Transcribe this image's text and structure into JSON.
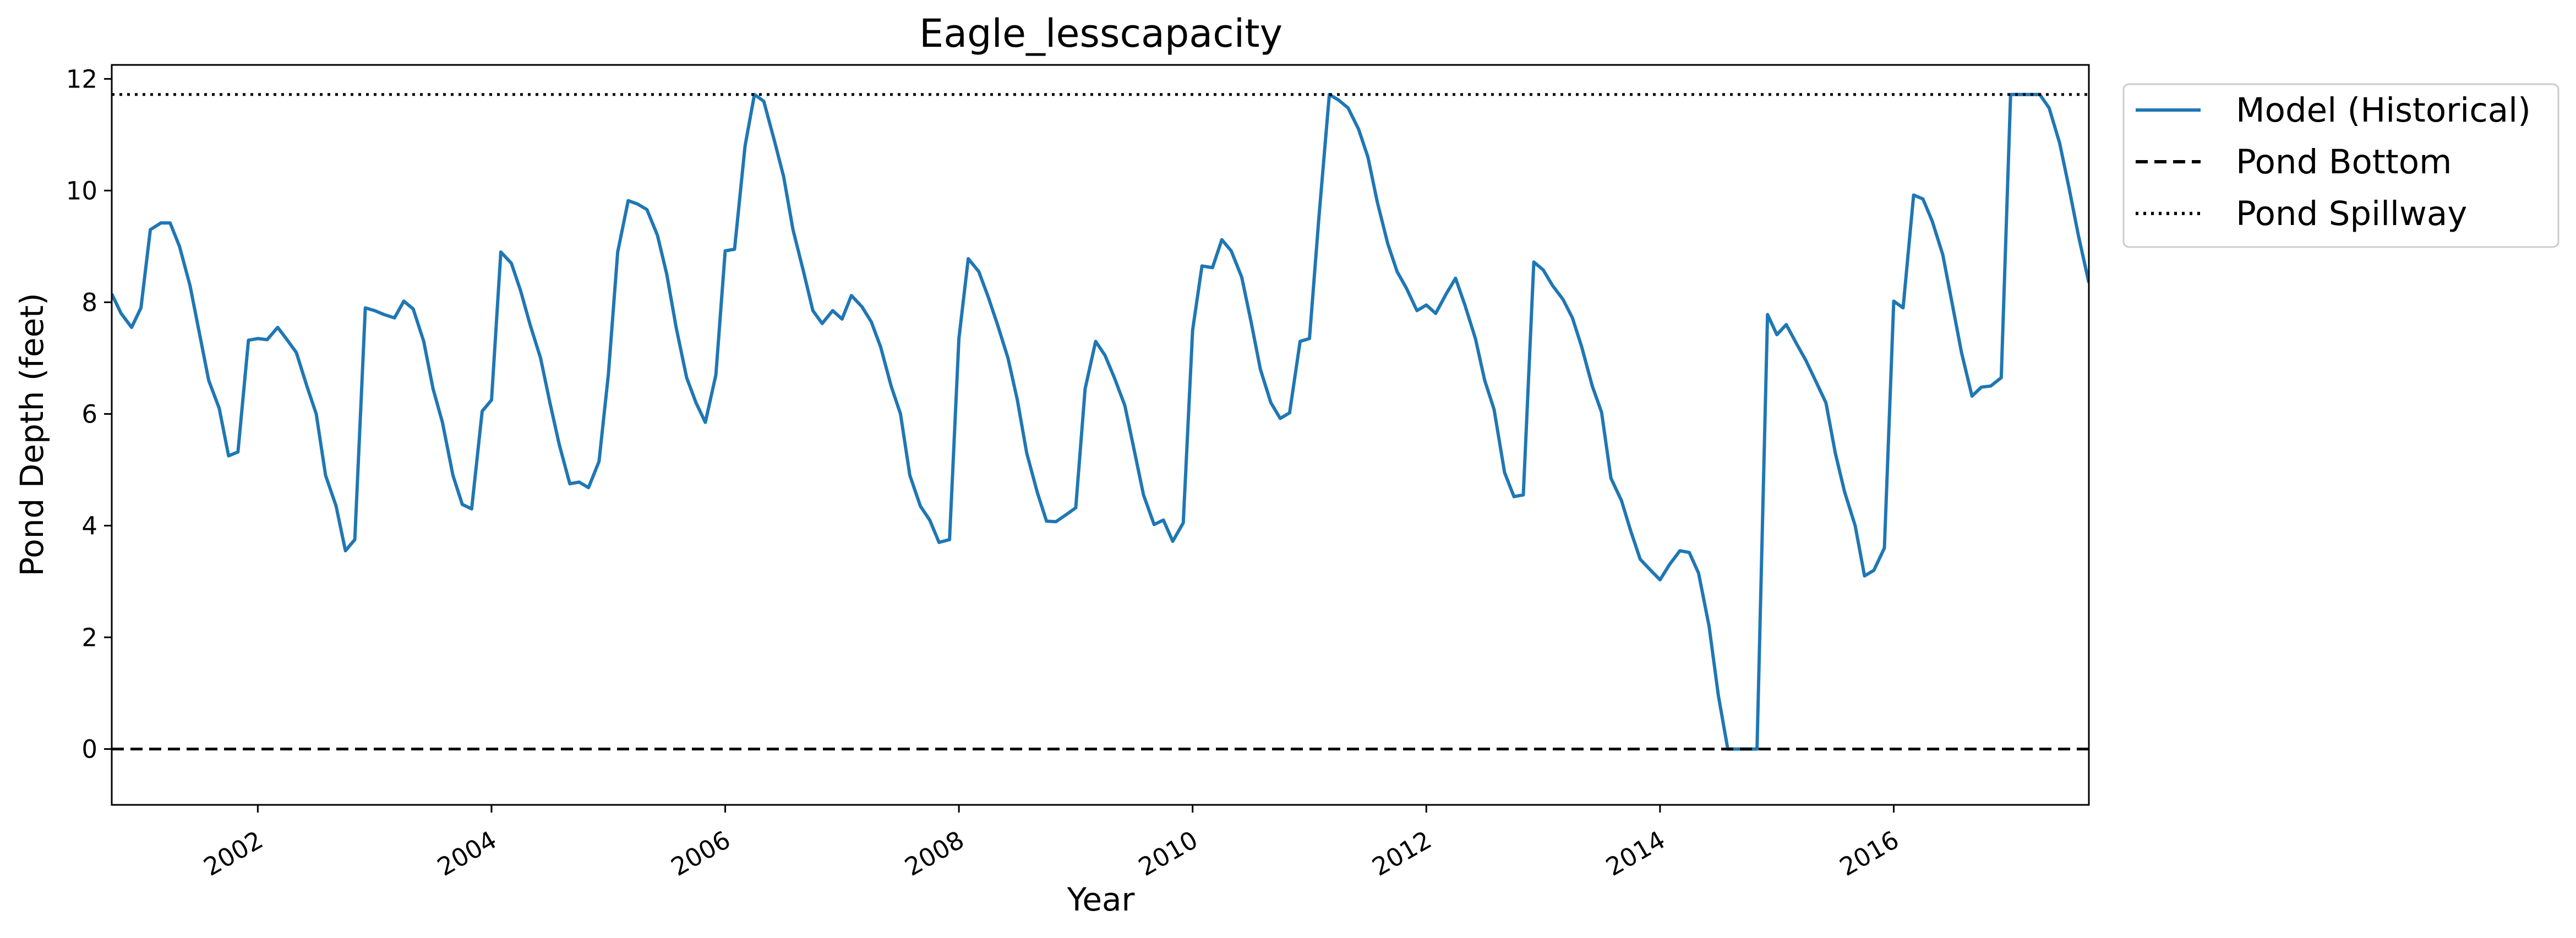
{
  "chart_data": {
    "type": "line",
    "title": "Eagle_lesscapacity",
    "xlabel": "Year",
    "ylabel": "Pond Depth (feet)",
    "xlim": [
      2000.75,
      2017.67
    ],
    "ylim": [
      -1,
      12.25
    ],
    "x_ticks": [
      2002,
      2004,
      2006,
      2008,
      2010,
      2012,
      2014,
      2016
    ],
    "x_tick_labels": [
      "2002",
      "2004",
      "2006",
      "2008",
      "2010",
      "2012",
      "2014",
      "2016"
    ],
    "y_ticks": [
      0,
      2,
      4,
      6,
      8,
      10,
      12
    ],
    "y_tick_labels": [
      "0",
      "2",
      "4",
      "6",
      "8",
      "10",
      "12"
    ],
    "grid": false,
    "legend_position": "outside-upper-right",
    "series": [
      {
        "name": "Model (Historical)",
        "color": "#1f77b4",
        "style": "solid",
        "x": [
          2000.75,
          2000.83,
          2000.92,
          2001.0,
          2001.08,
          2001.17,
          2001.25,
          2001.33,
          2001.42,
          2001.5,
          2001.58,
          2001.67,
          2001.75,
          2001.83,
          2001.92,
          2002.0,
          2002.08,
          2002.17,
          2002.25,
          2002.33,
          2002.42,
          2002.5,
          2002.58,
          2002.67,
          2002.75,
          2002.83,
          2002.92,
          2003.0,
          2003.08,
          2003.17,
          2003.25,
          2003.33,
          2003.42,
          2003.5,
          2003.58,
          2003.67,
          2003.75,
          2003.83,
          2003.92,
          2004.0,
          2004.08,
          2004.17,
          2004.25,
          2004.33,
          2004.42,
          2004.5,
          2004.58,
          2004.67,
          2004.75,
          2004.83,
          2004.92,
          2005.0,
          2005.08,
          2005.17,
          2005.25,
          2005.33,
          2005.42,
          2005.5,
          2005.58,
          2005.67,
          2005.75,
          2005.83,
          2005.92,
          2006.0,
          2006.08,
          2006.17,
          2006.25,
          2006.33,
          2006.42,
          2006.5,
          2006.58,
          2006.67,
          2006.75,
          2006.83,
          2006.92,
          2007.0,
          2007.08,
          2007.17,
          2007.25,
          2007.33,
          2007.42,
          2007.5,
          2007.58,
          2007.67,
          2007.75,
          2007.83,
          2007.92,
          2008.0,
          2008.08,
          2008.17,
          2008.25,
          2008.33,
          2008.42,
          2008.5,
          2008.58,
          2008.67,
          2008.75,
          2008.83,
          2008.92,
          2009.0,
          2009.08,
          2009.17,
          2009.25,
          2009.33,
          2009.42,
          2009.5,
          2009.58,
          2009.67,
          2009.75,
          2009.83,
          2009.92,
          2010.0,
          2010.08,
          2010.17,
          2010.25,
          2010.33,
          2010.42,
          2010.5,
          2010.58,
          2010.67,
          2010.75,
          2010.83,
          2010.92,
          2011.0,
          2011.08,
          2011.17,
          2011.25,
          2011.33,
          2011.42,
          2011.5,
          2011.58,
          2011.67,
          2011.75,
          2011.83,
          2011.92,
          2012.0,
          2012.08,
          2012.17,
          2012.25,
          2012.33,
          2012.42,
          2012.5,
          2012.58,
          2012.67,
          2012.75,
          2012.83,
          2012.92,
          2013.0,
          2013.08,
          2013.17,
          2013.25,
          2013.33,
          2013.42,
          2013.5,
          2013.58,
          2013.67,
          2013.75,
          2013.83,
          2013.92,
          2014.0,
          2014.08,
          2014.17,
          2014.25,
          2014.33,
          2014.42,
          2014.5,
          2014.58,
          2014.67,
          2014.75,
          2014.83,
          2014.92,
          2015.0,
          2015.08,
          2015.17,
          2015.25,
          2015.33,
          2015.42,
          2015.5,
          2015.58,
          2015.67,
          2015.75,
          2015.83,
          2015.92,
          2016.0,
          2016.08,
          2016.17,
          2016.25,
          2016.33,
          2016.42,
          2016.5,
          2016.58,
          2016.67,
          2016.75,
          2016.83,
          2016.92,
          2017.0,
          2017.08,
          2017.17,
          2017.25,
          2017.33,
          2017.42,
          2017.5,
          2017.58,
          2017.67
        ],
        "y": [
          8.15,
          7.8,
          7.55,
          7.9,
          9.3,
          9.42,
          9.42,
          9.0,
          8.3,
          7.45,
          6.6,
          6.1,
          5.25,
          5.32,
          7.32,
          7.35,
          7.33,
          7.55,
          7.33,
          7.1,
          6.5,
          6.0,
          4.9,
          4.35,
          3.55,
          3.75,
          7.9,
          7.85,
          7.78,
          7.72,
          8.02,
          7.88,
          7.3,
          6.45,
          5.85,
          4.9,
          4.38,
          4.3,
          6.05,
          6.25,
          8.9,
          8.7,
          8.2,
          7.6,
          7.0,
          6.2,
          5.45,
          4.75,
          4.78,
          4.68,
          5.15,
          6.7,
          8.9,
          9.82,
          9.76,
          9.66,
          9.2,
          8.5,
          7.55,
          6.65,
          6.2,
          5.85,
          6.7,
          8.92,
          8.95,
          10.8,
          11.72,
          11.6,
          10.9,
          10.25,
          9.3,
          8.55,
          7.85,
          7.62,
          7.85,
          7.7,
          8.12,
          7.92,
          7.65,
          7.2,
          6.5,
          6.0,
          4.9,
          4.35,
          4.1,
          3.7,
          3.75,
          7.35,
          8.78,
          8.55,
          8.1,
          7.6,
          7.0,
          6.25,
          5.3,
          4.6,
          4.08,
          4.07,
          4.2,
          4.32,
          6.45,
          7.3,
          7.05,
          6.65,
          6.15,
          5.35,
          4.55,
          4.02,
          4.1,
          3.72,
          4.05,
          7.5,
          8.65,
          8.62,
          9.12,
          8.92,
          8.45,
          7.65,
          6.8,
          6.2,
          5.92,
          6.02,
          7.3,
          7.35,
          9.5,
          11.72,
          11.62,
          11.48,
          11.1,
          10.6,
          9.8,
          9.05,
          8.55,
          8.25,
          7.85,
          7.95,
          7.8,
          8.15,
          8.43,
          7.95,
          7.35,
          6.6,
          6.08,
          4.95,
          4.52,
          4.55,
          8.72,
          8.58,
          8.3,
          8.05,
          7.72,
          7.2,
          6.5,
          6.03,
          4.85,
          4.45,
          3.9,
          3.4,
          3.2,
          3.03,
          3.3,
          3.55,
          3.52,
          3.15,
          2.2,
          0.95,
          0.0,
          0.0,
          0.0,
          0.0,
          7.78,
          7.42,
          7.6,
          7.25,
          6.95,
          6.6,
          6.2,
          5.3,
          4.6,
          4.0,
          3.1,
          3.2,
          3.6,
          8.02,
          7.9,
          9.92,
          9.85,
          9.45,
          8.85,
          7.98,
          7.1,
          6.32,
          6.48,
          6.5,
          6.65,
          11.72,
          11.72,
          11.72,
          11.72,
          11.48,
          10.85,
          10.05,
          9.2,
          8.35
        ]
      },
      {
        "name": "Pond Bottom",
        "color": "#000000",
        "style": "dashed",
        "value": 0
      },
      {
        "name": "Pond Spillway",
        "color": "#000000",
        "style": "dotted",
        "value": 11.72
      }
    ]
  }
}
